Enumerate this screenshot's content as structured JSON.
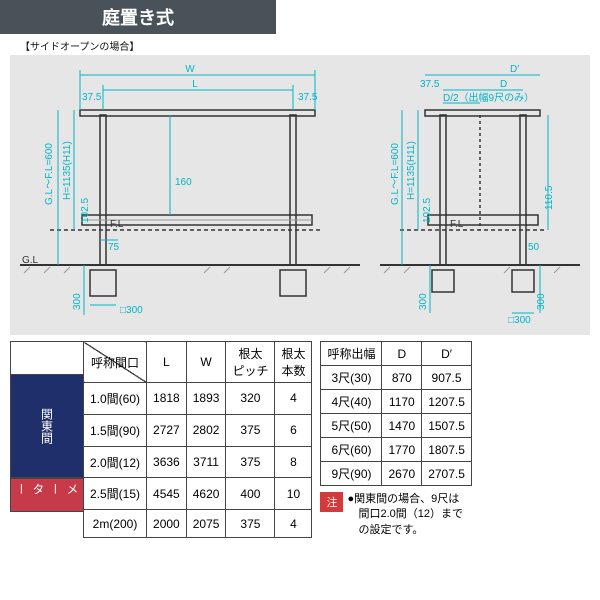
{
  "title": "庭置き式",
  "subtitle": "【サイドオープンの場合】",
  "diagram": {
    "front": {
      "labels": {
        "W": "W",
        "L": "L",
        "end_offset": "37.5",
        "post_top": "160",
        "post_offset": "75",
        "gl_fl": "G.L～F.L=600",
        "h": "H=1135(H11)",
        "mid": "102.5",
        "foot_box": "□300",
        "foot_depth": "300",
        "fl": "F.L",
        "gl": "G.L"
      }
    },
    "side": {
      "labels": {
        "Dp": "D′",
        "D": "D",
        "end_offset": "37.5",
        "d_half": "D/2（出幅9尺のみ）",
        "gl_fl": "G.L～F.L=600",
        "h": "H=1135(H11)",
        "mid": "102.5",
        "side_h": "110.5",
        "foot_offset": "50",
        "foot_box": "□300",
        "foot_depth": "300",
        "fl": "F.L"
      }
    },
    "colors": {
      "dim": "#00b5c8",
      "struct": "#333333",
      "bg": "#e6e6e6"
    }
  },
  "width_table": {
    "headers": [
      "呼称間口",
      "L",
      "W",
      "根太\nピッチ",
      "根太\n本数"
    ],
    "groups": [
      {
        "label": "関東間",
        "color": "#1e2f6b",
        "rows": [
          [
            "1.0間(60)",
            "1818",
            "1893",
            "320",
            "4"
          ],
          [
            "1.5間(90)",
            "2727",
            "2802",
            "375",
            "6"
          ],
          [
            "2.0間(12)",
            "3636",
            "3711",
            "375",
            "8"
          ],
          [
            "2.5間(15)",
            "4545",
            "4620",
            "400",
            "10"
          ]
        ]
      },
      {
        "label": "メーター",
        "color": "#c63a4a",
        "rows": [
          [
            "2m(200)",
            "2000",
            "2075",
            "375",
            "4"
          ]
        ]
      }
    ]
  },
  "depth_table": {
    "headers": [
      "呼称出幅",
      "D",
      "D′"
    ],
    "rows": [
      [
        "3尺(30)",
        "870",
        "907.5"
      ],
      [
        "4尺(40)",
        "1170",
        "1207.5"
      ],
      [
        "5尺(50)",
        "1470",
        "1507.5"
      ],
      [
        "6尺(60)",
        "1770",
        "1807.5"
      ],
      [
        "9尺(90)",
        "2670",
        "2707.5"
      ]
    ]
  },
  "note": {
    "tag": "注",
    "text": "●関東間の場合、9尺は\n　間口2.0間（12）まで\n　の設定です。"
  }
}
